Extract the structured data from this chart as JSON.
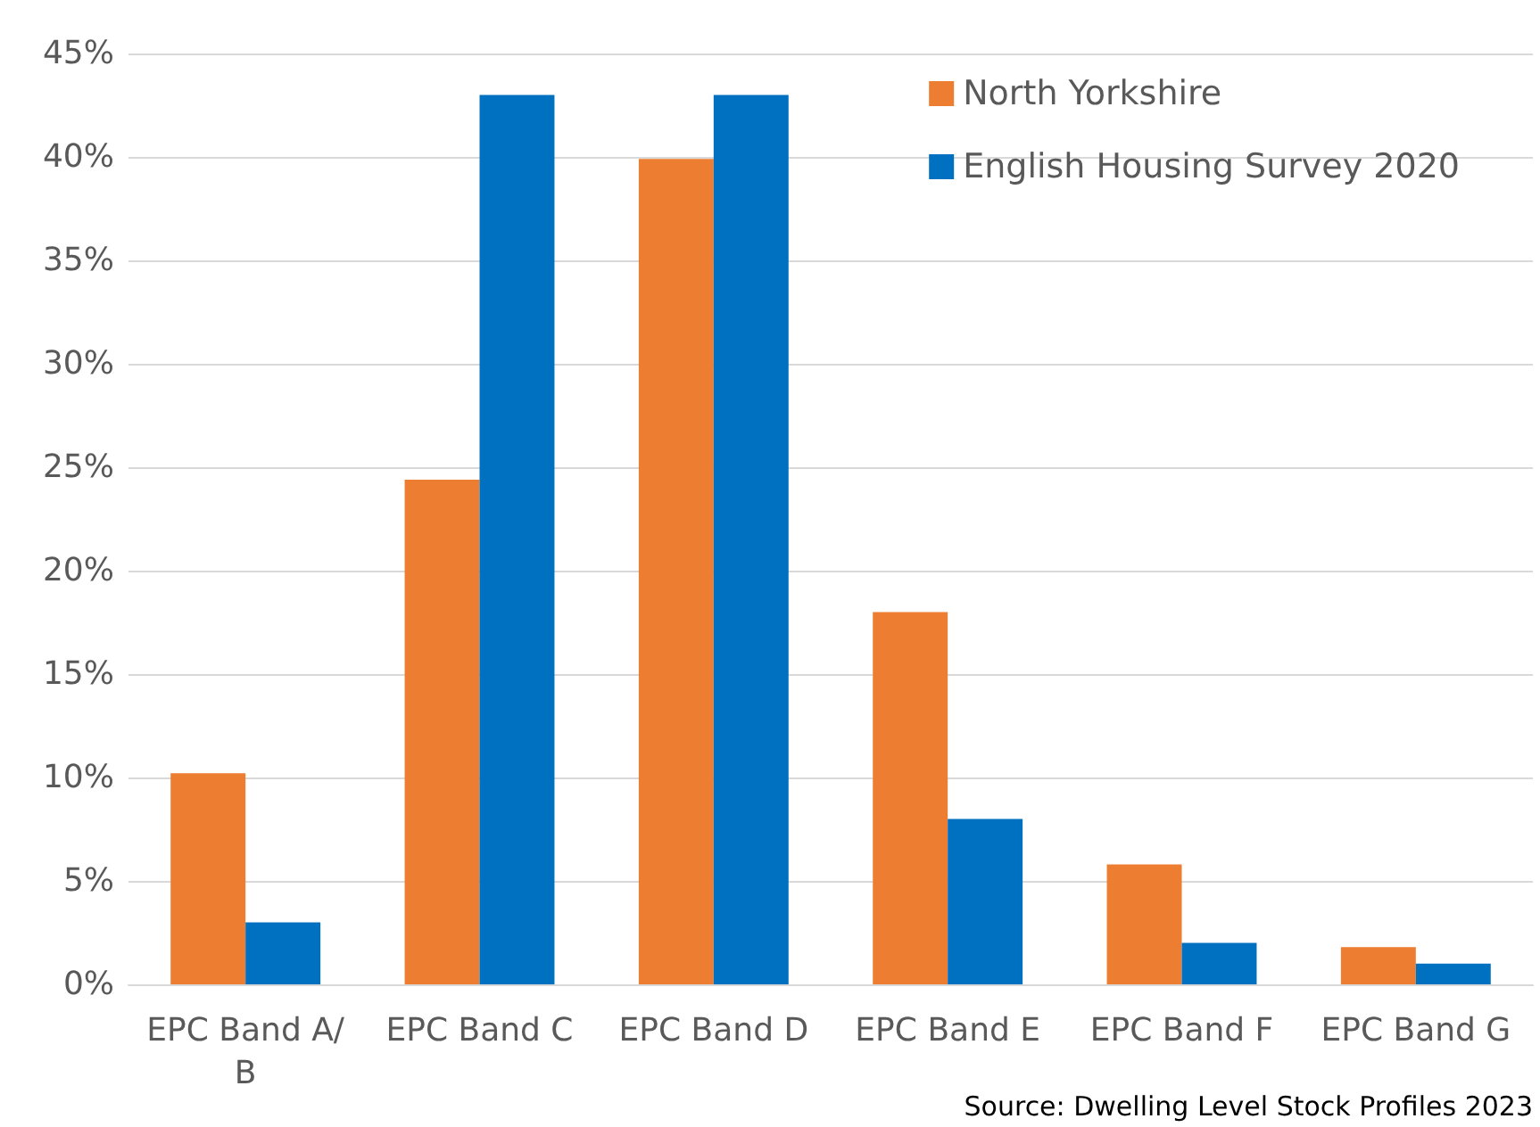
{
  "chart_data": {
    "type": "bar",
    "categories": [
      "EPC Band A/B",
      "EPC Band C",
      "EPC Band D",
      "EPC Band E",
      "EPC Band F",
      "EPC Band G"
    ],
    "series": [
      {
        "name": "North Yorkshire",
        "color": "#ed7d31",
        "values": [
          10.2,
          24.4,
          39.9,
          18,
          5.8,
          1.8
        ]
      },
      {
        "name": "English Housing Survey 2020",
        "color": "#0070c0",
        "values": [
          3,
          43,
          43,
          8,
          2,
          1
        ]
      }
    ],
    "ylim": [
      0,
      45
    ],
    "yticks": [
      {
        "value": 0,
        "label": "0%"
      },
      {
        "value": 5,
        "label": "5%"
      },
      {
        "value": 10,
        "label": "10%"
      },
      {
        "value": 15,
        "label": "15%"
      },
      {
        "value": 20,
        "label": "20%"
      },
      {
        "value": 25,
        "label": "25%"
      },
      {
        "value": 30,
        "label": "30%"
      },
      {
        "value": 35,
        "label": "35%"
      },
      {
        "value": 40,
        "label": "40%"
      },
      {
        "value": 45,
        "label": "45%"
      }
    ],
    "grid": "y",
    "legend": "top right",
    "annotations": [
      "Source: Dwelling Level Stock Profiles 2023"
    ]
  }
}
